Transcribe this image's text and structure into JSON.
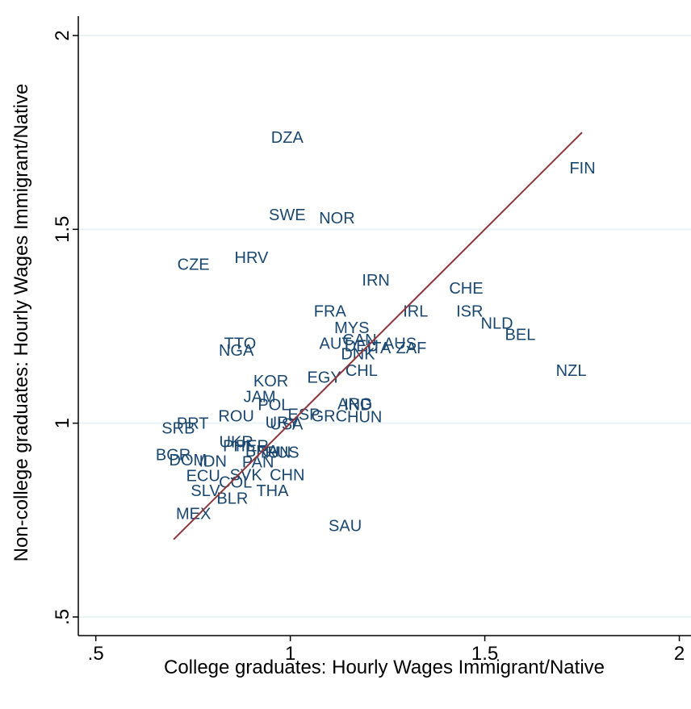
{
  "chart_data": {
    "type": "scatter",
    "xlabel": "College graduates: Hourly Wages Immigrant/Native",
    "ylabel": "Non-college graduates: Hourly Wages Immigrant/Native",
    "xlim": [
      0.455,
      2.03
    ],
    "ylim": [
      0.452,
      2.05
    ],
    "xticks": [
      {
        "value": 0.5,
        "label": ".5"
      },
      1,
      1.5,
      2
    ],
    "yticks": [
      {
        "value": 0.5,
        "label": ".5"
      },
      1,
      1.5,
      2
    ],
    "grid": true,
    "color": "#1a476f",
    "labels": [
      "DZA",
      "FIN",
      "SWE",
      "NOR",
      "CZE",
      "HRV",
      "IRN",
      "CHE",
      "FRA",
      "IRL",
      "ISR",
      "NLD",
      "BEL",
      "MYS",
      "CAN",
      "AUT",
      "DEU",
      "AUS",
      "ITA",
      "ZAF",
      "DNK",
      "TTO",
      "NGA",
      "NZL",
      "CHL",
      "EGY",
      "KOR",
      "JAM",
      "POL",
      "ARG",
      "IND",
      "HUN",
      "GRC",
      "ESP",
      "URY",
      "USA",
      "ROU",
      "PRT",
      "SRB",
      "UKR",
      "PHL",
      "PER",
      "BRA",
      "TUN",
      "RUS",
      "BGR",
      "DOM",
      "IDN",
      "PAN",
      "ECU",
      "SVK",
      "CHN",
      "COL",
      "SLV",
      "THA",
      "BLR",
      "MEX",
      "SAU"
    ],
    "x": [
      0.992,
      1.751,
      0.992,
      1.12,
      0.751,
      0.9,
      1.22,
      1.452,
      1.102,
      1.322,
      1.461,
      1.531,
      1.591,
      1.158,
      1.178,
      1.116,
      1.183,
      1.282,
      1.228,
      1.311,
      1.174,
      0.871,
      0.861,
      1.722,
      1.183,
      1.087,
      0.95,
      0.921,
      0.958,
      1.166,
      1.174,
      1.191,
      1.1,
      1.035,
      0.979,
      0.99,
      0.861,
      0.749,
      0.712,
      0.861,
      0.867,
      0.902,
      0.927,
      0.959,
      0.979,
      0.699,
      0.737,
      0.801,
      0.917,
      0.776,
      0.886,
      0.992,
      0.859,
      0.782,
      0.954,
      0.851,
      0.751,
      1.141
    ],
    "y": [
      1.738,
      1.659,
      1.538,
      1.53,
      1.41,
      1.428,
      1.37,
      1.349,
      1.289,
      1.289,
      1.289,
      1.258,
      1.229,
      1.247,
      1.216,
      1.206,
      1.2,
      1.206,
      1.195,
      1.195,
      1.179,
      1.206,
      1.189,
      1.137,
      1.137,
      1.119,
      1.11,
      1.069,
      1.048,
      1.05,
      1.048,
      1.017,
      1.019,
      1.023,
      1.002,
      0.998,
      1.019,
      1.0,
      0.988,
      0.952,
      0.942,
      0.942,
      0.929,
      0.925,
      0.925,
      0.919,
      0.906,
      0.902,
      0.9,
      0.865,
      0.867,
      0.867,
      0.848,
      0.827,
      0.827,
      0.807,
      0.767,
      0.736
    ],
    "fit_line": {
      "color": "#90353b",
      "x": [
        0.7,
        1.75
      ],
      "y": [
        0.7,
        1.75
      ]
    }
  }
}
